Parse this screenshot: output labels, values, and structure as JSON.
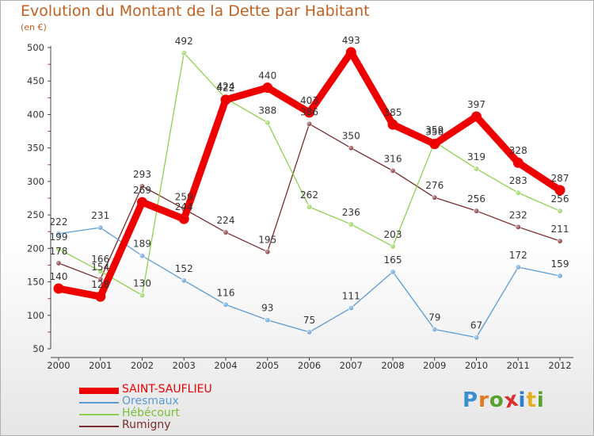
{
  "header": {
    "title": "Evolution du Montant de la Dette par Habitant",
    "subtitle": "(en €)"
  },
  "logo": {
    "text": "Proxiti",
    "colors": [
      "#3a8fd0",
      "#e07a20",
      "#5aa02c",
      "#d83030",
      "#2a7fd0",
      "#e0b020",
      "#5aa02c"
    ]
  },
  "chart_data": {
    "type": "line",
    "title": "Evolution du Montant de la Dette par Habitant",
    "subtitle": "(en €)",
    "xlabel": "",
    "ylabel": "",
    "x": [
      "2000",
      "2001",
      "2002",
      "2003",
      "2004",
      "2005",
      "2006",
      "2007",
      "2008",
      "2009",
      "2010",
      "2011",
      "2012"
    ],
    "ylim": [
      50,
      500
    ],
    "yticks": [
      50,
      100,
      150,
      200,
      250,
      300,
      350,
      400,
      450,
      500
    ],
    "grid": false,
    "legend_position": "bottom-left",
    "series": [
      {
        "name": "SAINT-SAUFLIEU",
        "color": "#ee0000",
        "values": [
          140,
          128,
          269,
          244,
          422,
          440,
          403,
          493,
          385,
          356,
          397,
          328,
          287
        ]
      },
      {
        "name": "Oresmaux",
        "color": "#5b9bd5",
        "values": [
          222,
          231,
          189,
          152,
          116,
          93,
          75,
          111,
          165,
          79,
          67,
          172,
          159
        ]
      },
      {
        "name": "Hébécourt",
        "color": "#8fd14f",
        "values": [
          199,
          166,
          130,
          492,
          424,
          388,
          262,
          236,
          203,
          359,
          319,
          283,
          256
        ]
      },
      {
        "name": "Rumigny",
        "color": "#7b2c2c",
        "values": [
          178,
          154,
          293,
          259,
          224,
          195,
          386,
          350,
          316,
          276,
          256,
          232,
          211
        ]
      }
    ]
  }
}
